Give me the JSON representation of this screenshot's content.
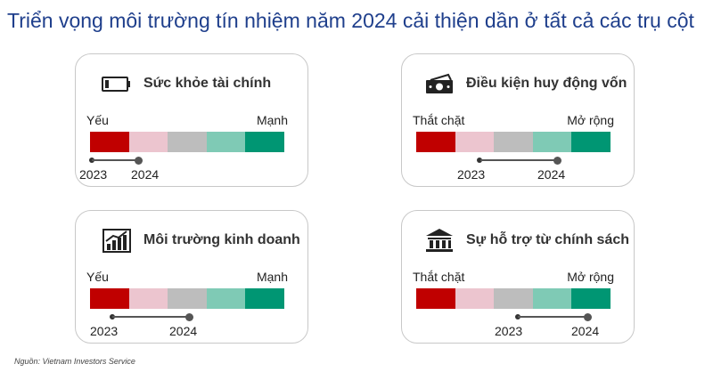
{
  "title": "Triển vọng môi trường tín nhiệm năm 2024 cải thiện dần ở tất cả các trụ cột",
  "scale_colors": [
    "#c00000",
    "#ecc5cf",
    "#bdbdbd",
    "#7fcab5",
    "#009673"
  ],
  "cards": [
    {
      "label": "Sức khỏe tài chính",
      "icon": "battery-icon",
      "left_label": "Yếu",
      "right_label": "Mạnh",
      "year_start": "2023",
      "year_end": "2024"
    },
    {
      "label": "Điều kiện huy động vốn",
      "icon": "cash-icon",
      "left_label": "Thắt chặt",
      "right_label": "Mở rộng",
      "year_start": "2023",
      "year_end": "2024"
    },
    {
      "label": "Môi trường kinh doanh",
      "icon": "growth-chart-icon",
      "left_label": "Yếu",
      "right_label": "Mạnh",
      "year_start": "2023",
      "year_end": "2024"
    },
    {
      "label": "Sự hỗ trợ từ chính sách",
      "icon": "government-building-icon",
      "left_label": "Thắt chặt",
      "right_label": "Mở rộng",
      "year_start": "2023",
      "year_end": "2024"
    }
  ],
  "source": "Nguồn: Vietnam Investors Service"
}
